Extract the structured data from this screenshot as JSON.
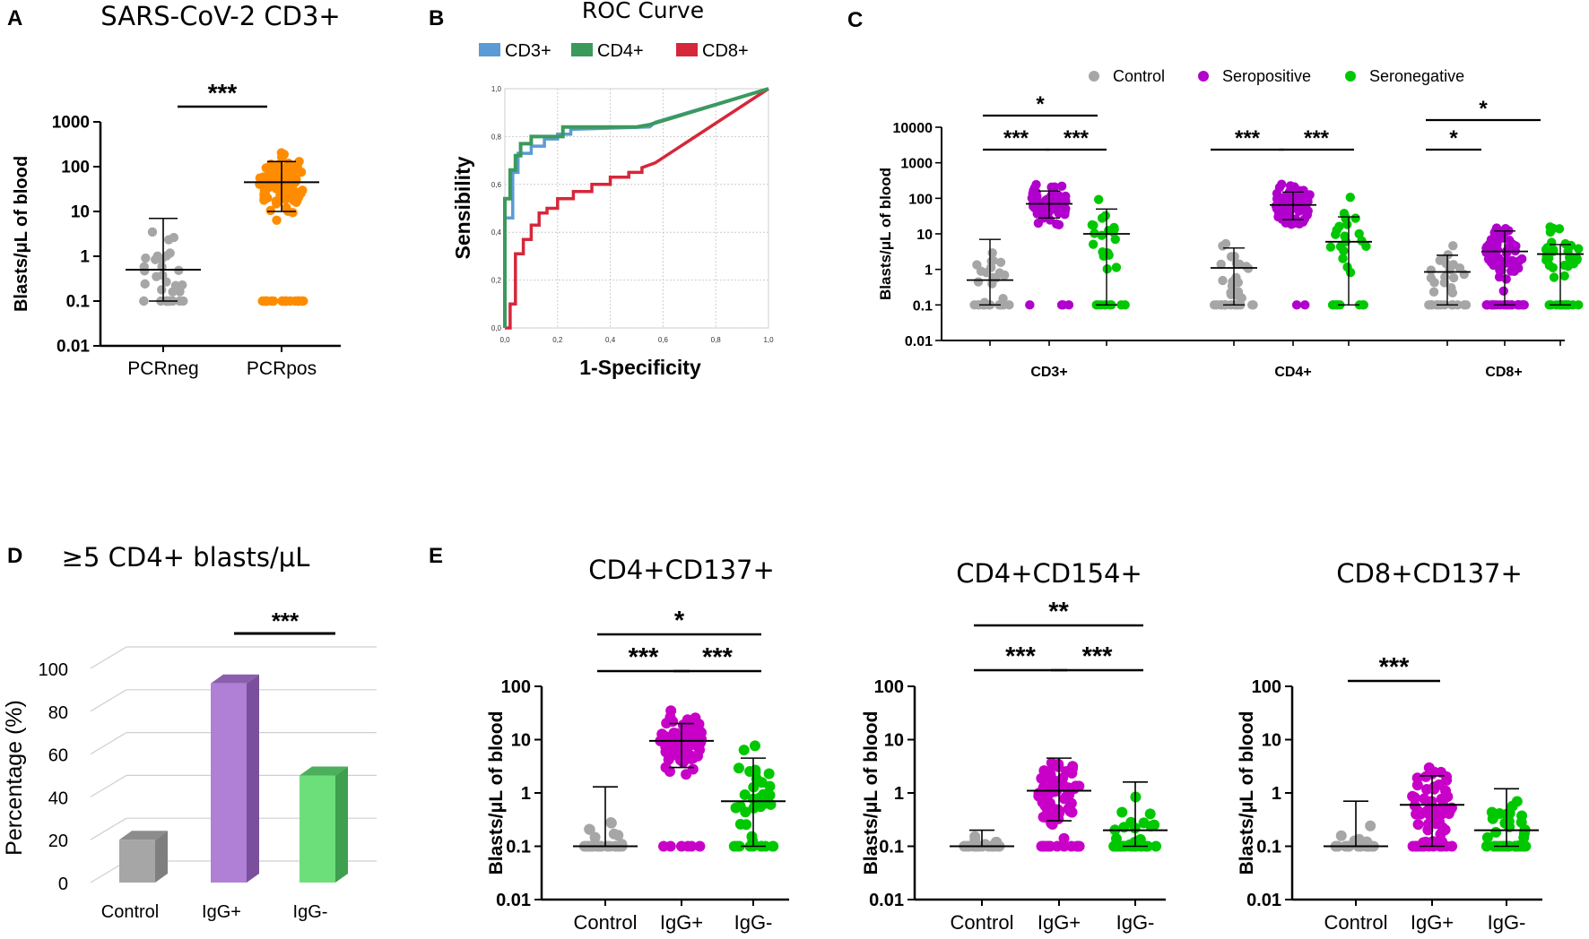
{
  "chart_data": [
    {
      "panel": "A",
      "type": "scatter",
      "title": "SARS-CoV-2 CD3+",
      "ylabel": "Blasts/μL of blood",
      "yscale": "log",
      "ylim": [
        0.01,
        1000
      ],
      "yticks": [
        "0.01",
        "0.1",
        "1",
        "10",
        "100",
        "1000"
      ],
      "categories": [
        "PCRneg",
        "PCRpos"
      ],
      "colors": [
        "#a6a6a6",
        "#ff8c00"
      ],
      "medians": [
        0.5,
        45
      ],
      "err_low": [
        0.1,
        10
      ],
      "err_high": [
        7,
        130
      ],
      "comparisons": [
        {
          "from": 0,
          "to": 1,
          "label": "***"
        }
      ]
    },
    {
      "panel": "B",
      "type": "line",
      "title": "ROC Curve",
      "xlabel": "1-Specificity",
      "ylabel": "Sensibility",
      "xticks": [
        "0,0",
        "0,2",
        "0,4",
        "0,6",
        "0,8",
        "1,0"
      ],
      "yticks": [
        "0,0",
        "0,2",
        "0,4",
        "0,6",
        "0,8",
        "1,0"
      ],
      "series": [
        {
          "name": "CD3+",
          "color": "#5b9bd5",
          "x": [
            0,
            0,
            0.03,
            0.03,
            0.05,
            0.05,
            0.1,
            0.1,
            0.15,
            0.15,
            0.2,
            0.2,
            0.25,
            0.25,
            0.55,
            0.57,
            1.0
          ],
          "y": [
            0,
            0.46,
            0.46,
            0.65,
            0.65,
            0.73,
            0.73,
            0.76,
            0.76,
            0.79,
            0.79,
            0.81,
            0.81,
            0.83,
            0.84,
            0.86,
            1.0
          ]
        },
        {
          "name": "CD4+",
          "color": "#3a9a5c",
          "x": [
            0,
            0,
            0.02,
            0.02,
            0.04,
            0.04,
            0.06,
            0.06,
            0.1,
            0.1,
            0.22,
            0.22,
            0.5,
            0.55,
            1.0
          ],
          "y": [
            0,
            0.54,
            0.54,
            0.66,
            0.66,
            0.72,
            0.72,
            0.77,
            0.77,
            0.8,
            0.8,
            0.84,
            0.84,
            0.85,
            1.0
          ]
        },
        {
          "name": "CD8+",
          "color": "#d6273a",
          "x": [
            0,
            0.02,
            0.02,
            0.04,
            0.04,
            0.07,
            0.07,
            0.1,
            0.1,
            0.13,
            0.13,
            0.16,
            0.16,
            0.2,
            0.2,
            0.26,
            0.26,
            0.33,
            0.33,
            0.4,
            0.4,
            0.47,
            0.47,
            0.52,
            0.52,
            0.57,
            1.0
          ],
          "y": [
            0,
            0,
            0.1,
            0.1,
            0.31,
            0.31,
            0.37,
            0.37,
            0.43,
            0.43,
            0.48,
            0.48,
            0.5,
            0.5,
            0.54,
            0.54,
            0.57,
            0.57,
            0.6,
            0.6,
            0.63,
            0.63,
            0.65,
            0.65,
            0.67,
            0.69,
            1.0
          ]
        }
      ]
    },
    {
      "panel": "C",
      "type": "scatter",
      "ylabel": "Blasts/μL of blood",
      "yscale": "log",
      "ylim": [
        0.01,
        10000
      ],
      "yticks": [
        "0.01",
        "0.1",
        "1",
        "10",
        "100",
        "1000",
        "10000"
      ],
      "groups": [
        "CD3+",
        "CD4+",
        "CD8+"
      ],
      "series_names": [
        "Control",
        "Seropositive",
        "Seronegative"
      ],
      "colors": [
        "#a6a6a6",
        "#b100cd",
        "#00c800"
      ],
      "medians": [
        [
          0.5,
          70,
          10
        ],
        [
          1.1,
          65,
          6
        ],
        [
          0.85,
          3.2,
          2.7
        ]
      ],
      "err_low": [
        [
          0.1,
          28,
          0.1
        ],
        [
          0.1,
          25,
          0.1
        ],
        [
          0.1,
          0.1,
          0.1
        ]
      ],
      "err_high": [
        [
          7,
          160,
          50
        ],
        [
          4,
          150,
          30
        ],
        [
          2.5,
          12,
          5
        ]
      ],
      "comparisons": [
        {
          "group": 0,
          "from": 0,
          "to": 1,
          "label": "***"
        },
        {
          "group": 0,
          "from": 1,
          "to": 2,
          "label": "***"
        },
        {
          "group": 0,
          "from": 0,
          "to": 2,
          "label": "*"
        },
        {
          "group": 1,
          "from": 0,
          "to": 1,
          "label": "***"
        },
        {
          "group": 1,
          "from": 1,
          "to": 2,
          "label": "***"
        },
        {
          "group": 2,
          "from": 0,
          "to": 1,
          "label": "*"
        },
        {
          "group": 2,
          "from": 0,
          "to": 2,
          "label": "*"
        }
      ]
    },
    {
      "panel": "D",
      "type": "bar",
      "title": "≥5 CD4+ blasts/μL",
      "ylabel": "Percentage (%)",
      "ylim": [
        0,
        100
      ],
      "yticks": [
        "0",
        "20",
        "40",
        "60",
        "80",
        "100"
      ],
      "categories": [
        "Control",
        "IgG+",
        "IgG-"
      ],
      "values": [
        20,
        93,
        50
      ],
      "colors": [
        "#a6a6a6",
        "#b07fd6",
        "#6ddf7a"
      ],
      "comparisons": [
        {
          "from": 1,
          "to": 2,
          "label": "***"
        }
      ]
    },
    {
      "panel": "E",
      "type": "scatter",
      "title": "CD4+CD137+",
      "ylabel": "Blasts/μL of blood",
      "yscale": "log",
      "ylim": [
        0.01,
        100
      ],
      "yticks": [
        "0.01",
        "0.1",
        "1",
        "10",
        "100"
      ],
      "categories": [
        "Control",
        "IgG+",
        "IgG-"
      ],
      "colors": [
        "#a6a6a6",
        "#c800c8",
        "#00c800"
      ],
      "medians": [
        0.1,
        9.5,
        0.7
      ],
      "err_low": [
        0.1,
        3,
        0.1
      ],
      "err_high": [
        1.3,
        20,
        4.5
      ],
      "comparisons": [
        {
          "from": 0,
          "to": 1,
          "label": "***"
        },
        {
          "from": 1,
          "to": 2,
          "label": "***"
        },
        {
          "from": 0,
          "to": 2,
          "label": "*"
        }
      ]
    },
    {
      "panel": "E",
      "type": "scatter",
      "title": "CD4+CD154+",
      "ylabel": "Blasts/μL of blood",
      "yscale": "log",
      "ylim": [
        0.01,
        100
      ],
      "yticks": [
        "0.01",
        "0.1",
        "1",
        "10",
        "100"
      ],
      "categories": [
        "Control",
        "IgG+",
        "IgG-"
      ],
      "colors": [
        "#a6a6a6",
        "#c800c8",
        "#00c800"
      ],
      "medians": [
        0.1,
        1.1,
        0.2
      ],
      "err_low": [
        0.1,
        0.3,
        0.1
      ],
      "err_high": [
        0.2,
        4.5,
        1.6
      ],
      "comparisons": [
        {
          "from": 0,
          "to": 1,
          "label": "***"
        },
        {
          "from": 1,
          "to": 2,
          "label": "***"
        },
        {
          "from": 0,
          "to": 2,
          "label": "**"
        }
      ]
    },
    {
      "panel": "E",
      "type": "scatter",
      "title": "CD8+CD137+",
      "ylabel": "Blasts/μL of blood",
      "yscale": "log",
      "ylim": [
        0.01,
        100
      ],
      "yticks": [
        "0.01",
        "0.1",
        "1",
        "10",
        "100"
      ],
      "categories": [
        "Control",
        "IgG+",
        "IgG-"
      ],
      "colors": [
        "#a6a6a6",
        "#c800c8",
        "#00c800"
      ],
      "medians": [
        0.1,
        0.6,
        0.2
      ],
      "err_low": [
        0.1,
        0.1,
        0.1
      ],
      "err_high": [
        0.7,
        2.1,
        1.2
      ],
      "comparisons": [
        {
          "from": 0,
          "to": 1,
          "label": "***"
        }
      ]
    }
  ],
  "panel_labels": [
    "A",
    "B",
    "C",
    "D",
    "E"
  ]
}
